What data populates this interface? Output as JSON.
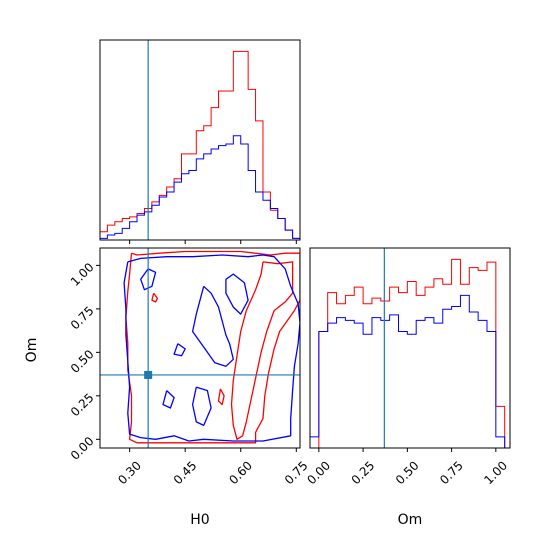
{
  "chart_data": [
    {
      "panel": "H0 marginal",
      "type": "histogram",
      "x_range": [
        0.22,
        0.76
      ],
      "bin_edges": [
        0.22,
        0.24,
        0.26,
        0.28,
        0.3,
        0.32,
        0.34,
        0.36,
        0.38,
        0.4,
        0.42,
        0.44,
        0.46,
        0.48,
        0.5,
        0.52,
        0.54,
        0.56,
        0.58,
        0.6,
        0.62,
        0.64,
        0.66,
        0.68,
        0.7,
        0.72,
        0.74,
        0.76
      ],
      "series": [
        {
          "color": "#ff0000",
          "values": [
            5,
            9,
            11,
            13,
            14,
            16,
            19,
            23,
            27,
            32,
            37,
            52,
            52,
            66,
            69,
            80,
            90,
            90,
            114,
            114,
            91,
            72,
            29,
            18,
            13,
            6,
            1
          ]
        },
        {
          "color": "#0000ff",
          "values": [
            1,
            3,
            4,
            7,
            11,
            15,
            17,
            21,
            26,
            29,
            35,
            40,
            42,
            49,
            52,
            55,
            57,
            58,
            63,
            58,
            42,
            29,
            24,
            19,
            13,
            6,
            1
          ]
        }
      ],
      "truth_x": 0.35,
      "truth_color": "#1f77b4",
      "xticks": [
        0.3,
        0.45,
        0.6,
        0.75
      ]
    },
    {
      "panel": "Om marginal",
      "type": "histogram",
      "x_range": [
        -0.05,
        1.08
      ],
      "bin_edges": [
        -0.05,
        0.0,
        0.05,
        0.1,
        0.15,
        0.2,
        0.25,
        0.3,
        0.35,
        0.4,
        0.45,
        0.5,
        0.55,
        0.6,
        0.65,
        0.7,
        0.75,
        0.8,
        0.85,
        0.9,
        0.95,
        1.0,
        1.05
      ],
      "series": [
        {
          "color": "#ff0000",
          "values": [
            0,
            42,
            56,
            52,
            55,
            58,
            52,
            54,
            53,
            58,
            56,
            60,
            55,
            58,
            61,
            59,
            68,
            59,
            65,
            64,
            67,
            15
          ]
        },
        {
          "color": "#0000ff",
          "values": [
            4,
            42,
            45,
            47,
            46,
            45,
            41,
            47,
            46,
            48,
            42,
            41,
            46,
            47,
            45,
            50,
            51,
            55,
            49,
            46,
            42,
            4
          ]
        }
      ],
      "truth_x": 0.37,
      "truth_color": "#1f77b4",
      "xticks": [
        0.0,
        0.25,
        0.5,
        0.75,
        1.0
      ],
      "xtick_labels": [
        "0.00",
        "0.25",
        "0.50",
        "0.75",
        "1.00"
      ],
      "xlabel": "Om"
    },
    {
      "panel": "H0 vs Om joint",
      "type": "contour",
      "x_range": [
        0.22,
        0.76
      ],
      "y_range": [
        -0.05,
        1.1
      ],
      "xlabel": "H0",
      "ylabel": "Om",
      "xticks": [
        0.3,
        0.45,
        0.6,
        0.75
      ],
      "xtick_labels": [
        "0.30",
        "0.45",
        "0.60",
        "0.75"
      ],
      "yticks": [
        0.0,
        0.25,
        0.5,
        0.75,
        1.0
      ],
      "ytick_labels": [
        "0.00",
        "0.25",
        "0.50",
        "0.75",
        "1.00"
      ],
      "truth_point": [
        0.35,
        0.37
      ],
      "truth_color": "#1f77b4",
      "contours": [
        {
          "color": "#ff0000",
          "level": "outer",
          "points": [
            [
              0.305,
              1.07
            ],
            [
              0.32,
              1.06
            ],
            [
              0.38,
              1.07
            ],
            [
              0.45,
              1.08
            ],
            [
              0.52,
              1.08
            ],
            [
              0.6,
              1.08
            ],
            [
              0.68,
              1.06
            ],
            [
              0.72,
              1.07
            ],
            [
              0.76,
              1.07
            ],
            [
              0.76,
              0.96
            ],
            [
              0.76,
              0.8
            ],
            [
              0.745,
              0.74
            ],
            [
              0.705,
              0.62
            ],
            [
              0.69,
              0.52
            ],
            [
              0.675,
              0.38
            ],
            [
              0.665,
              0.25
            ],
            [
              0.66,
              0.12
            ],
            [
              0.64,
              0.04
            ],
            [
              0.64,
              -0.02
            ],
            [
              0.6,
              -0.02
            ],
            [
              0.52,
              -0.02
            ],
            [
              0.46,
              -0.02
            ],
            [
              0.4,
              -0.02
            ],
            [
              0.36,
              -0.02
            ],
            [
              0.32,
              -0.02
            ],
            [
              0.3,
              0.0
            ],
            [
              0.305,
              0.1
            ],
            [
              0.305,
              0.25
            ],
            [
              0.295,
              0.4
            ],
            [
              0.295,
              0.55
            ],
            [
              0.29,
              0.7
            ],
            [
              0.295,
              0.85
            ],
            [
              0.3,
              0.95
            ],
            [
              0.305,
              1.07
            ]
          ]
        },
        {
          "color": "#ff0000",
          "level": "inner",
          "points": [
            [
              0.66,
              1.02
            ],
            [
              0.7,
              1.01
            ],
            [
              0.74,
              1.02
            ],
            [
              0.74,
              0.93
            ],
            [
              0.74,
              0.84
            ],
            [
              0.72,
              0.79
            ],
            [
              0.69,
              0.74
            ],
            [
              0.67,
              0.62
            ],
            [
              0.655,
              0.5
            ],
            [
              0.645,
              0.4
            ],
            [
              0.635,
              0.3
            ],
            [
              0.625,
              0.2
            ],
            [
              0.615,
              0.1
            ],
            [
              0.605,
              0.02
            ],
            [
              0.59,
              0.0
            ],
            [
              0.58,
              0.08
            ],
            [
              0.575,
              0.2
            ],
            [
              0.58,
              0.34
            ],
            [
              0.59,
              0.48
            ],
            [
              0.6,
              0.62
            ],
            [
              0.615,
              0.74
            ],
            [
              0.64,
              0.86
            ],
            [
              0.655,
              0.95
            ],
            [
              0.66,
              1.02
            ]
          ]
        },
        {
          "color": "#ff0000",
          "level": "inner",
          "points": [
            [
              0.365,
              0.84
            ],
            [
              0.375,
              0.81
            ],
            [
              0.37,
              0.79
            ],
            [
              0.36,
              0.8
            ],
            [
              0.365,
              0.84
            ]
          ]
        },
        {
          "color": "#ff0000",
          "level": "inner",
          "points": [
            [
              0.545,
              0.29
            ],
            [
              0.555,
              0.25
            ],
            [
              0.55,
              0.2
            ],
            [
              0.54,
              0.22
            ],
            [
              0.545,
              0.29
            ]
          ]
        },
        {
          "color": "#0000ff",
          "level": "outer",
          "points": [
            [
              0.295,
              1.02
            ],
            [
              0.33,
              1.04
            ],
            [
              0.4,
              1.05
            ],
            [
              0.47,
              1.05
            ],
            [
              0.55,
              1.06
            ],
            [
              0.62,
              1.05
            ],
            [
              0.66,
              1.06
            ],
            [
              0.69,
              1.05
            ],
            [
              0.72,
              0.98
            ],
            [
              0.735,
              0.88
            ],
            [
              0.755,
              0.78
            ],
            [
              0.76,
              0.67
            ],
            [
              0.755,
              0.55
            ],
            [
              0.745,
              0.42
            ],
            [
              0.74,
              0.28
            ],
            [
              0.735,
              0.12
            ],
            [
              0.735,
              0.02
            ],
            [
              0.66,
              -0.01
            ],
            [
              0.58,
              -0.01
            ],
            [
              0.5,
              0.0
            ],
            [
              0.46,
              -0.01
            ],
            [
              0.42,
              0.02
            ],
            [
              0.37,
              0.0
            ],
            [
              0.33,
              0.01
            ],
            [
              0.3,
              0.03
            ],
            [
              0.295,
              0.15
            ],
            [
              0.3,
              0.3
            ],
            [
              0.295,
              0.45
            ],
            [
              0.29,
              0.6
            ],
            [
              0.29,
              0.75
            ],
            [
              0.285,
              0.9
            ],
            [
              0.295,
              1.02
            ]
          ]
        },
        {
          "color": "#0000ff",
          "level": "inner",
          "points": [
            [
              0.35,
              0.98
            ],
            [
              0.37,
              0.96
            ],
            [
              0.36,
              0.88
            ],
            [
              0.34,
              0.86
            ],
            [
              0.33,
              0.92
            ],
            [
              0.35,
              0.98
            ]
          ]
        },
        {
          "color": "#0000ff",
          "level": "inner",
          "points": [
            [
              0.5,
              0.88
            ],
            [
              0.52,
              0.84
            ],
            [
              0.54,
              0.76
            ],
            [
              0.55,
              0.68
            ],
            [
              0.56,
              0.6
            ],
            [
              0.57,
              0.55
            ],
            [
              0.58,
              0.46
            ],
            [
              0.56,
              0.42
            ],
            [
              0.53,
              0.44
            ],
            [
              0.51,
              0.5
            ],
            [
              0.49,
              0.56
            ],
            [
              0.47,
              0.62
            ],
            [
              0.48,
              0.72
            ],
            [
              0.49,
              0.8
            ],
            [
              0.5,
              0.88
            ]
          ]
        },
        {
          "color": "#0000ff",
          "level": "inner",
          "points": [
            [
              0.43,
              0.55
            ],
            [
              0.45,
              0.52
            ],
            [
              0.44,
              0.48
            ],
            [
              0.42,
              0.49
            ],
            [
              0.43,
              0.55
            ]
          ]
        },
        {
          "color": "#0000ff",
          "level": "inner",
          "points": [
            [
              0.4,
              0.28
            ],
            [
              0.42,
              0.24
            ],
            [
              0.41,
              0.18
            ],
            [
              0.39,
              0.2
            ],
            [
              0.4,
              0.28
            ]
          ]
        },
        {
          "color": "#0000ff",
          "level": "inner",
          "points": [
            [
              0.48,
              0.3
            ],
            [
              0.51,
              0.28
            ],
            [
              0.52,
              0.18
            ],
            [
              0.5,
              0.08
            ],
            [
              0.48,
              0.1
            ],
            [
              0.47,
              0.2
            ],
            [
              0.48,
              0.3
            ]
          ]
        },
        {
          "color": "#0000ff",
          "level": "inner",
          "points": [
            [
              0.56,
              0.92
            ],
            [
              0.58,
              0.95
            ],
            [
              0.61,
              0.9
            ],
            [
              0.62,
              0.8
            ],
            [
              0.6,
              0.72
            ],
            [
              0.58,
              0.76
            ],
            [
              0.56,
              0.84
            ],
            [
              0.56,
              0.92
            ]
          ]
        }
      ]
    }
  ]
}
